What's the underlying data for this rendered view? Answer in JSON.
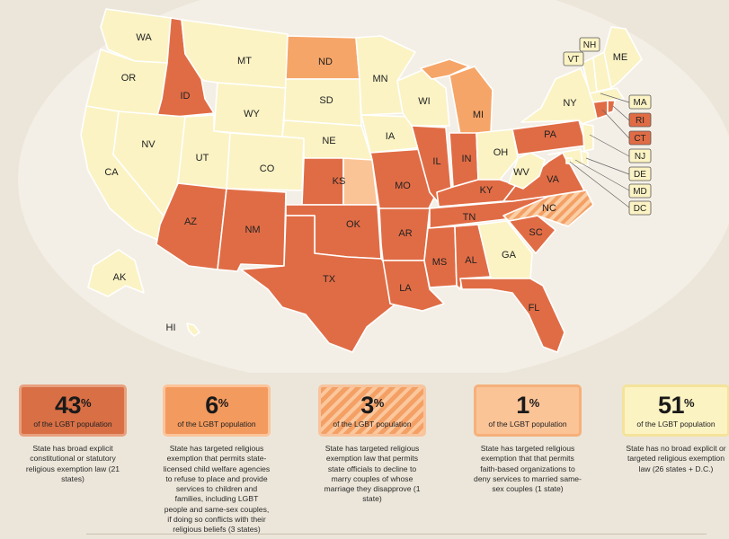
{
  "colors": {
    "broad": "#e06c45",
    "child_welfare": "#f6a568",
    "marriage_officials_stripe_a": "#f4a065",
    "marriage_officials_stripe_b": "#fbcfa6",
    "faith_orgs": "#fbc497",
    "none": "#fbf3c4",
    "state_border": "#ffffff",
    "background": "#ece6da"
  },
  "states": {
    "WA": "WA",
    "OR": "OR",
    "CA": "CA",
    "ID": "ID",
    "NV": "NV",
    "MT": "MT",
    "WY": "WY",
    "UT": "UT",
    "AZ": "AZ",
    "CO": "CO",
    "NM": "NM",
    "ND": "ND",
    "SD": "SD",
    "NE": "NE",
    "KS": "KS",
    "OK": "OK",
    "TX": "TX",
    "MN": "MN",
    "IA": "IA",
    "MO": "MO",
    "AR": "AR",
    "LA": "LA",
    "WI": "WI",
    "IL": "IL",
    "MI": "MI",
    "IN": "IN",
    "OH": "OH",
    "KY": "KY",
    "TN": "TN",
    "MS": "MS",
    "AL": "AL",
    "GA": "GA",
    "FL": "FL",
    "SC": "SC",
    "NC": "NC",
    "VA": "VA",
    "WV": "WV",
    "PA": "PA",
    "NY": "NY",
    "VT": "VT",
    "NH": "NH",
    "ME": "ME",
    "MA": "MA",
    "RI": "RI",
    "CT": "CT",
    "NJ": "NJ",
    "DE": "DE",
    "MD": "MD",
    "DC": "DC",
    "AK": "AK",
    "HI": "HI"
  },
  "legend": [
    {
      "percent": "43",
      "percent_sign": "%",
      "population_label": "of the LGBT population",
      "description": "State has broad explicit constitutional or statutory religious exemption law (21 states)"
    },
    {
      "percent": "6",
      "percent_sign": "%",
      "population_label": "of the LGBT population",
      "description": "State has targeted religious exemption that permits state-licensed child welfare agencies to refuse to place and provide services to children and families, including LGBT people and same-sex couples, if doing so conflicts with their religious beliefs (3 states)"
    },
    {
      "percent": "3",
      "percent_sign": "%",
      "population_label": "of the LGBT population",
      "description": "State has targeted religious exemption law that permits state officials to decline to marry couples of whose marriage they disapprove (1 state)"
    },
    {
      "percent": "1",
      "percent_sign": "%",
      "population_label": "of the LGBT population",
      "description": "State has targeted religious exemption that that permits faith-based organizations to deny services to married same-sex couples (1 state)"
    },
    {
      "percent": "51",
      "percent_sign": "%",
      "population_label": "of the LGBT population",
      "description": "State has no broad explicit or targeted religious exemption law (26 states + D.C.)"
    }
  ]
}
